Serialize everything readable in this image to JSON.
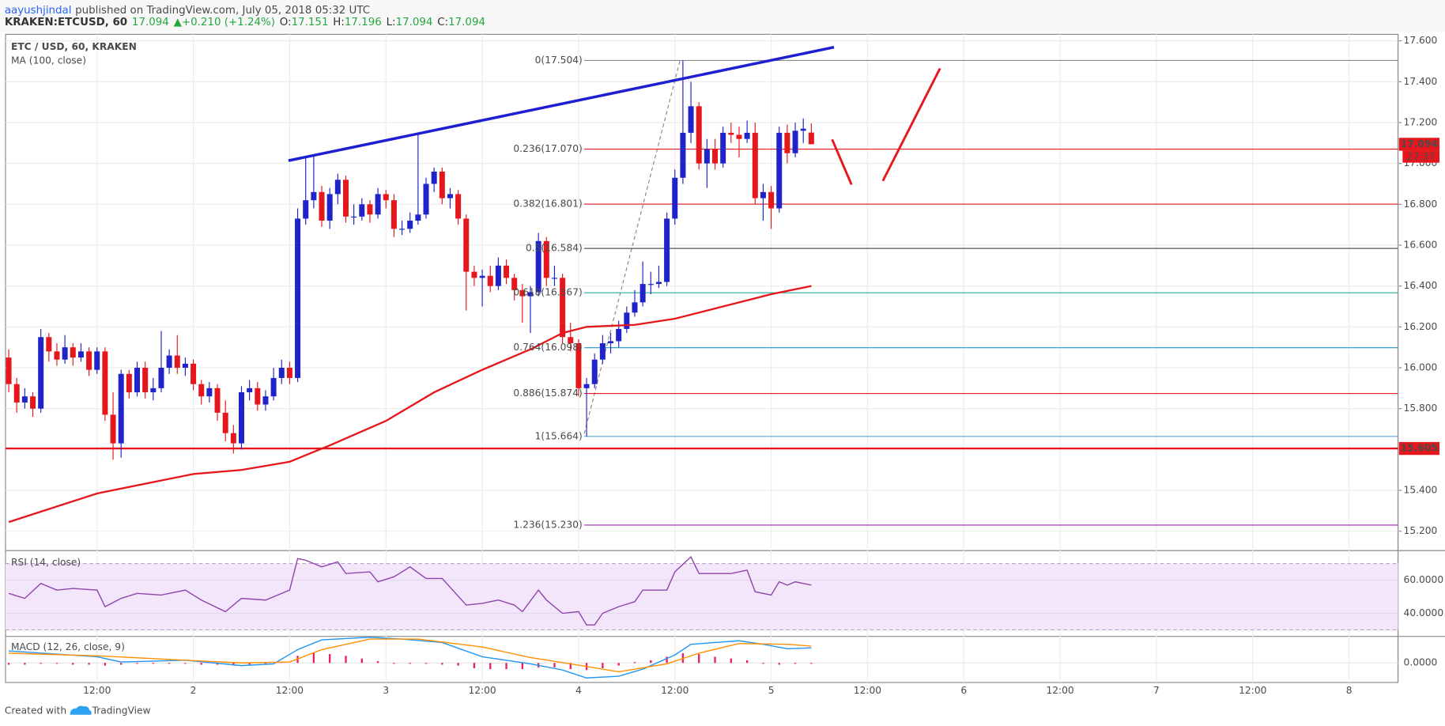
{
  "header": {
    "author": "aayushjindal",
    "published": "published on TradingView.com, July 05, 2018 05:32 UTC",
    "symbol": "KRAKEN:ETCUSD, 60",
    "last": "17.094",
    "arrow": "▲",
    "change": "+0.210 (+1.24%)",
    "ohlc": [
      {
        "label": "O:",
        "value": "17.151"
      },
      {
        "label": "H:",
        "value": "17.196"
      },
      {
        "label": "L:",
        "value": "17.094"
      },
      {
        "label": "C:",
        "value": "17.094"
      }
    ]
  },
  "footer": {
    "text": "Created with",
    "brand": "TradingView"
  },
  "chart_data": {
    "type": "candlestick",
    "title": "ETC / USD, 60, KRAKEN",
    "up_color": "#1f23c9",
    "down_color": "#e5171c",
    "grid": true,
    "xlim": [
      0.6,
      174.1
    ],
    "xticks": [
      {
        "value": 12,
        "label": "12:00"
      },
      {
        "value": 24,
        "label": "2"
      },
      {
        "value": 36,
        "label": "12:00"
      },
      {
        "value": 48,
        "label": "3"
      },
      {
        "value": 60,
        "label": "12:00"
      },
      {
        "value": 72,
        "label": "4"
      },
      {
        "value": 84,
        "label": "12:00"
      },
      {
        "value": 96,
        "label": "5"
      },
      {
        "value": 108,
        "label": "12:00"
      },
      {
        "value": 120,
        "label": "6"
      },
      {
        "value": 132,
        "label": "12:00"
      },
      {
        "value": 144,
        "label": "7"
      },
      {
        "value": 156,
        "label": "12:00"
      },
      {
        "value": 168,
        "label": "8"
      }
    ],
    "ylim": [
      15.105,
      17.632
    ],
    "yticks": [
      {
        "value": 15.2,
        "label": "15.200"
      },
      {
        "value": 15.4,
        "label": "15.400"
      },
      {
        "value": 15.8,
        "label": "15.800"
      },
      {
        "value": 16.0,
        "label": "16.000"
      },
      {
        "value": 16.2,
        "label": "16.200"
      },
      {
        "value": 16.4,
        "label": "16.400"
      },
      {
        "value": 16.6,
        "label": "16.600"
      },
      {
        "value": 16.8,
        "label": "16.800"
      },
      {
        "value": 17.0,
        "label": "17.000"
      },
      {
        "value": 17.2,
        "label": "17.200"
      },
      {
        "value": 17.4,
        "label": "17.400"
      },
      {
        "value": 17.6,
        "label": "17.600"
      }
    ],
    "x": [
      1,
      2,
      3,
      4,
      5,
      6,
      7,
      8,
      9,
      10,
      11,
      12,
      13,
      14,
      15,
      16,
      17,
      18,
      19,
      20,
      21,
      22,
      23,
      24,
      25,
      26,
      27,
      28,
      29,
      30,
      31,
      32,
      33,
      34,
      35,
      36,
      37,
      38,
      39,
      40,
      41,
      42,
      43,
      44,
      45,
      46,
      47,
      48,
      49,
      50,
      51,
      52,
      53,
      54,
      55,
      56,
      57,
      58,
      59,
      60,
      61,
      62,
      63,
      64,
      65,
      66,
      67,
      68,
      69,
      70,
      71,
      72,
      73,
      74,
      75,
      76,
      77,
      78,
      79,
      80,
      81,
      82,
      83,
      84,
      85,
      86,
      87,
      88,
      89,
      90,
      91,
      92,
      93,
      94,
      95,
      96,
      97,
      98,
      99,
      100,
      101
    ],
    "ohlc": [
      [
        16.05,
        16.09,
        15.88,
        15.92
      ],
      [
        15.92,
        15.95,
        15.78,
        15.83
      ],
      [
        15.83,
        15.9,
        15.8,
        15.86
      ],
      [
        15.86,
        15.88,
        15.76,
        15.8
      ],
      [
        15.8,
        16.19,
        15.78,
        16.15
      ],
      [
        16.15,
        16.17,
        16.03,
        16.08
      ],
      [
        16.08,
        16.12,
        16.01,
        16.04
      ],
      [
        16.04,
        16.16,
        16.02,
        16.1
      ],
      [
        16.1,
        16.12,
        16.01,
        16.05
      ],
      [
        16.05,
        16.12,
        16.03,
        16.08
      ],
      [
        16.08,
        16.1,
        15.96,
        15.99
      ],
      [
        15.99,
        16.1,
        15.97,
        16.08
      ],
      [
        16.08,
        16.1,
        15.74,
        15.77
      ],
      [
        15.77,
        15.88,
        15.55,
        15.63
      ],
      [
        15.63,
        15.99,
        15.56,
        15.97
      ],
      [
        15.97,
        15.99,
        15.85,
        15.88
      ],
      [
        15.88,
        16.03,
        15.86,
        16.0
      ],
      [
        16.0,
        16.03,
        15.85,
        15.88
      ],
      [
        15.88,
        15.95,
        15.84,
        15.9
      ],
      [
        15.9,
        16.18,
        15.88,
        16.0
      ],
      [
        16.0,
        16.09,
        15.97,
        16.06
      ],
      [
        16.06,
        16.16,
        15.97,
        16.0
      ],
      [
        16.0,
        16.05,
        15.96,
        16.02
      ],
      [
        16.02,
        16.04,
        15.89,
        15.92
      ],
      [
        15.92,
        15.94,
        15.82,
        15.86
      ],
      [
        15.86,
        15.93,
        15.83,
        15.9
      ],
      [
        15.9,
        15.92,
        15.74,
        15.78
      ],
      [
        15.78,
        15.84,
        15.64,
        15.68
      ],
      [
        15.68,
        15.72,
        15.58,
        15.63
      ],
      [
        15.63,
        15.91,
        15.6,
        15.88
      ],
      [
        15.88,
        15.94,
        15.84,
        15.9
      ],
      [
        15.9,
        15.93,
        15.79,
        15.82
      ],
      [
        15.82,
        15.89,
        15.79,
        15.86
      ],
      [
        15.86,
        16.0,
        15.84,
        15.95
      ],
      [
        15.95,
        16.04,
        15.92,
        16.0
      ],
      [
        16.0,
        16.03,
        15.92,
        15.95
      ],
      [
        15.95,
        16.78,
        15.93,
        16.73
      ],
      [
        16.73,
        17.03,
        16.7,
        16.82
      ],
      [
        16.82,
        17.04,
        16.78,
        16.86
      ],
      [
        16.86,
        16.89,
        16.69,
        16.72
      ],
      [
        16.72,
        16.88,
        16.68,
        16.85
      ],
      [
        16.85,
        16.95,
        16.8,
        16.92
      ],
      [
        16.92,
        16.94,
        16.71,
        16.74
      ],
      [
        16.74,
        16.8,
        16.7,
        16.74
      ],
      [
        16.74,
        16.83,
        16.72,
        16.8
      ],
      [
        16.8,
        16.82,
        16.71,
        16.75
      ],
      [
        16.75,
        16.88,
        16.73,
        16.85
      ],
      [
        16.85,
        16.87,
        16.78,
        16.82
      ],
      [
        16.82,
        16.85,
        16.64,
        16.68
      ],
      [
        16.68,
        16.72,
        16.65,
        16.68
      ],
      [
        16.68,
        16.76,
        16.66,
        16.72
      ],
      [
        16.72,
        17.14,
        16.7,
        16.75
      ],
      [
        16.75,
        16.93,
        16.73,
        16.9
      ],
      [
        16.9,
        16.98,
        16.86,
        16.96
      ],
      [
        16.96,
        16.98,
        16.8,
        16.83
      ],
      [
        16.83,
        16.88,
        16.78,
        16.85
      ],
      [
        16.85,
        16.87,
        16.7,
        16.73
      ],
      [
        16.73,
        16.75,
        16.28,
        16.47
      ],
      [
        16.47,
        16.5,
        16.4,
        16.44
      ],
      [
        16.44,
        16.48,
        16.3,
        16.45
      ],
      [
        16.45,
        16.5,
        16.37,
        16.4
      ],
      [
        16.4,
        16.54,
        16.38,
        16.5
      ],
      [
        16.5,
        16.53,
        16.41,
        16.44
      ],
      [
        16.44,
        16.46,
        16.33,
        16.38
      ],
      [
        16.38,
        16.41,
        16.22,
        16.35
      ],
      [
        16.35,
        16.4,
        16.17,
        16.37
      ],
      [
        16.37,
        16.66,
        16.35,
        16.62
      ],
      [
        16.62,
        16.64,
        16.4,
        16.44
      ],
      [
        16.44,
        16.5,
        16.4,
        16.44
      ],
      [
        16.44,
        16.46,
        16.12,
        16.15
      ],
      [
        16.15,
        16.22,
        16.08,
        16.12
      ],
      [
        16.12,
        16.14,
        15.86,
        15.9
      ],
      [
        15.9,
        15.95,
        15.664,
        15.92
      ],
      [
        15.92,
        16.07,
        15.9,
        16.04
      ],
      [
        16.04,
        16.16,
        16.02,
        16.12
      ],
      [
        16.12,
        16.17,
        16.07,
        16.13
      ],
      [
        16.13,
        16.23,
        16.1,
        16.19
      ],
      [
        16.19,
        16.3,
        16.17,
        16.27
      ],
      [
        16.27,
        16.38,
        16.25,
        16.32
      ],
      [
        16.32,
        16.52,
        16.3,
        16.41
      ],
      [
        16.41,
        16.47,
        16.36,
        16.41
      ],
      [
        16.41,
        16.5,
        16.39,
        16.42
      ],
      [
        16.42,
        16.76,
        16.4,
        16.73
      ],
      [
        16.73,
        16.97,
        16.7,
        16.93
      ],
      [
        16.93,
        17.504,
        16.9,
        17.15
      ],
      [
        17.15,
        17.4,
        17.1,
        17.28
      ],
      [
        17.28,
        17.3,
        16.97,
        17.0
      ],
      [
        17.0,
        17.12,
        16.88,
        17.07
      ],
      [
        17.07,
        17.12,
        16.97,
        17.0
      ],
      [
        17.0,
        17.18,
        16.98,
        17.15
      ],
      [
        17.15,
        17.2,
        17.1,
        17.14
      ],
      [
        17.14,
        17.18,
        17.03,
        17.12
      ],
      [
        17.12,
        17.21,
        17.1,
        17.15
      ],
      [
        17.15,
        17.2,
        16.8,
        16.83
      ],
      [
        16.83,
        16.9,
        16.72,
        16.86
      ],
      [
        16.86,
        16.89,
        16.68,
        16.78
      ],
      [
        16.78,
        17.18,
        16.76,
        17.15
      ],
      [
        17.15,
        17.19,
        17.0,
        17.05
      ],
      [
        17.05,
        17.2,
        17.03,
        17.16
      ],
      [
        17.16,
        17.22,
        17.1,
        17.17
      ],
      [
        17.151,
        17.196,
        17.094,
        17.094
      ]
    ],
    "ma": {
      "name": "MA (100, close)",
      "color": "#e5171c",
      "x": [
        1,
        12,
        24,
        30,
        36,
        41,
        48,
        54,
        60,
        66,
        70,
        73,
        79,
        84,
        90,
        96,
        101
      ],
      "values": [
        15.245,
        15.385,
        15.48,
        15.5,
        15.54,
        15.62,
        15.74,
        15.88,
        15.99,
        16.09,
        16.17,
        16.2,
        16.21,
        16.24,
        16.3,
        16.36,
        16.4
      ]
    },
    "fib": [
      {
        "value": 17.504,
        "label": "0(17.504)",
        "color": "#8a8a8a"
      },
      {
        "value": 17.07,
        "label": "0.236(17.070)",
        "color": "#e5171c"
      },
      {
        "value": 16.801,
        "label": "0.382(16.801)",
        "color": "#e5171c"
      },
      {
        "value": 16.584,
        "label": "0.5(16.584)",
        "color": "#555555"
      },
      {
        "value": 16.367,
        "label": "0.618(16.367)",
        "color": "#26a69a"
      },
      {
        "value": 16.098,
        "label": "0.764(16.098)",
        "color": "#2196c8"
      },
      {
        "value": 15.874,
        "label": "0.886(15.874)",
        "color": "#e5171c"
      },
      {
        "value": 15.664,
        "label": "1(15.664)",
        "color": "#5aa9d6"
      },
      {
        "value": 15.23,
        "label": "1.236(15.230)",
        "color": "#9c27b0"
      }
    ],
    "support": {
      "value": 15.605,
      "label": "15.605",
      "color": "#e5171c"
    },
    "last_price": {
      "value": 17.094,
      "label": "17.094",
      "countdown": "27:37",
      "color": "#e5171c"
    },
    "rsi": {
      "name": "RSI (14, close)",
      "color": "#8e44ad",
      "ylim": [
        26.1,
        77.2
      ],
      "yticks": [
        {
          "value": 40,
          "label": "40.0000"
        },
        {
          "value": 60,
          "label": "60.0000"
        }
      ],
      "bands": [
        30,
        70
      ],
      "x": [
        1,
        3,
        5,
        7,
        9,
        12,
        13,
        15,
        17,
        20,
        23,
        25,
        28,
        30,
        33,
        36,
        37,
        38,
        40,
        42,
        43,
        46,
        47,
        49,
        51,
        53,
        55,
        58,
        60,
        62,
        64,
        65,
        67,
        68,
        70,
        72,
        73,
        74,
        75,
        77,
        79,
        80,
        83,
        84,
        86,
        87,
        88,
        91,
        93,
        94,
        96,
        97,
        98,
        99,
        101
      ],
      "values": [
        52,
        49,
        58,
        54,
        55,
        54,
        44,
        49,
        52,
        51,
        54,
        48,
        41,
        49,
        48,
        54,
        73,
        72,
        68,
        71,
        64,
        65,
        59,
        62,
        68,
        61,
        61,
        45,
        46,
        48,
        45,
        41,
        54,
        48,
        40,
        41,
        33,
        33,
        40,
        44,
        47,
        54,
        54,
        65,
        74,
        64,
        64,
        64,
        66,
        53,
        51,
        59,
        57,
        59,
        57
      ]
    },
    "macd": {
      "name": "MACD (12, 26, close, 9)",
      "ylim": [
        -0.2,
        0.3
      ],
      "yticks": [
        {
          "value": 0,
          "label": "0.0000"
        }
      ],
      "line": {
        "color": "#2196f3",
        "x": [
          1,
          12,
          15,
          23,
          30,
          34,
          37,
          40,
          46,
          50,
          55,
          60,
          66,
          70,
          73,
          77,
          80,
          84,
          86,
          92,
          95,
          98,
          101
        ],
        "values": [
          0.135,
          0.07,
          0.01,
          0.03,
          -0.03,
          -0.01,
          0.15,
          0.26,
          0.29,
          0.27,
          0.23,
          0.07,
          -0.01,
          -0.08,
          -0.17,
          -0.15,
          -0.07,
          0.09,
          0.21,
          0.25,
          0.21,
          0.16,
          0.17
        ]
      },
      "signal": {
        "color": "#ff8f00",
        "x": [
          1,
          12,
          23,
          30,
          36,
          40,
          46,
          52,
          60,
          66,
          71,
          77,
          83,
          87,
          92,
          98,
          101
        ],
        "values": [
          0.11,
          0.08,
          0.03,
          0,
          0.01,
          0.15,
          0.27,
          0.27,
          0.18,
          0.06,
          -0.01,
          -0.1,
          -0.01,
          0.11,
          0.22,
          0.21,
          0.19
        ]
      },
      "hist": {
        "color": "#e91e63",
        "x": [
          1,
          3,
          5,
          7,
          9,
          11,
          13,
          15,
          17,
          19,
          21,
          23,
          25,
          27,
          29,
          31,
          33,
          35,
          37,
          39,
          41,
          43,
          45,
          47,
          49,
          51,
          53,
          55,
          57,
          59,
          61,
          63,
          65,
          67,
          69,
          71,
          73,
          75,
          77,
          79,
          81,
          83,
          85,
          87,
          89,
          91,
          93,
          95,
          97,
          99,
          101
        ],
        "values": [
          -0.02,
          -0.02,
          -0.01,
          -0.01,
          -0.02,
          -0.02,
          -0.03,
          -0.02,
          -0.01,
          -0.01,
          -0.01,
          -0.01,
          -0.02,
          -0.02,
          -0.03,
          -0.02,
          -0.01,
          0.01,
          0.08,
          0.11,
          0.1,
          0.08,
          0.05,
          0.02,
          -0.01,
          -0.01,
          -0.01,
          -0.02,
          -0.03,
          -0.06,
          -0.07,
          -0.07,
          -0.07,
          -0.05,
          -0.05,
          -0.07,
          -0.08,
          -0.06,
          -0.03,
          0.01,
          0.03,
          0.07,
          0.11,
          0.1,
          0.07,
          0.05,
          0.03,
          -0.01,
          -0.02,
          -0.01,
          -0.01
        ]
      }
    }
  }
}
